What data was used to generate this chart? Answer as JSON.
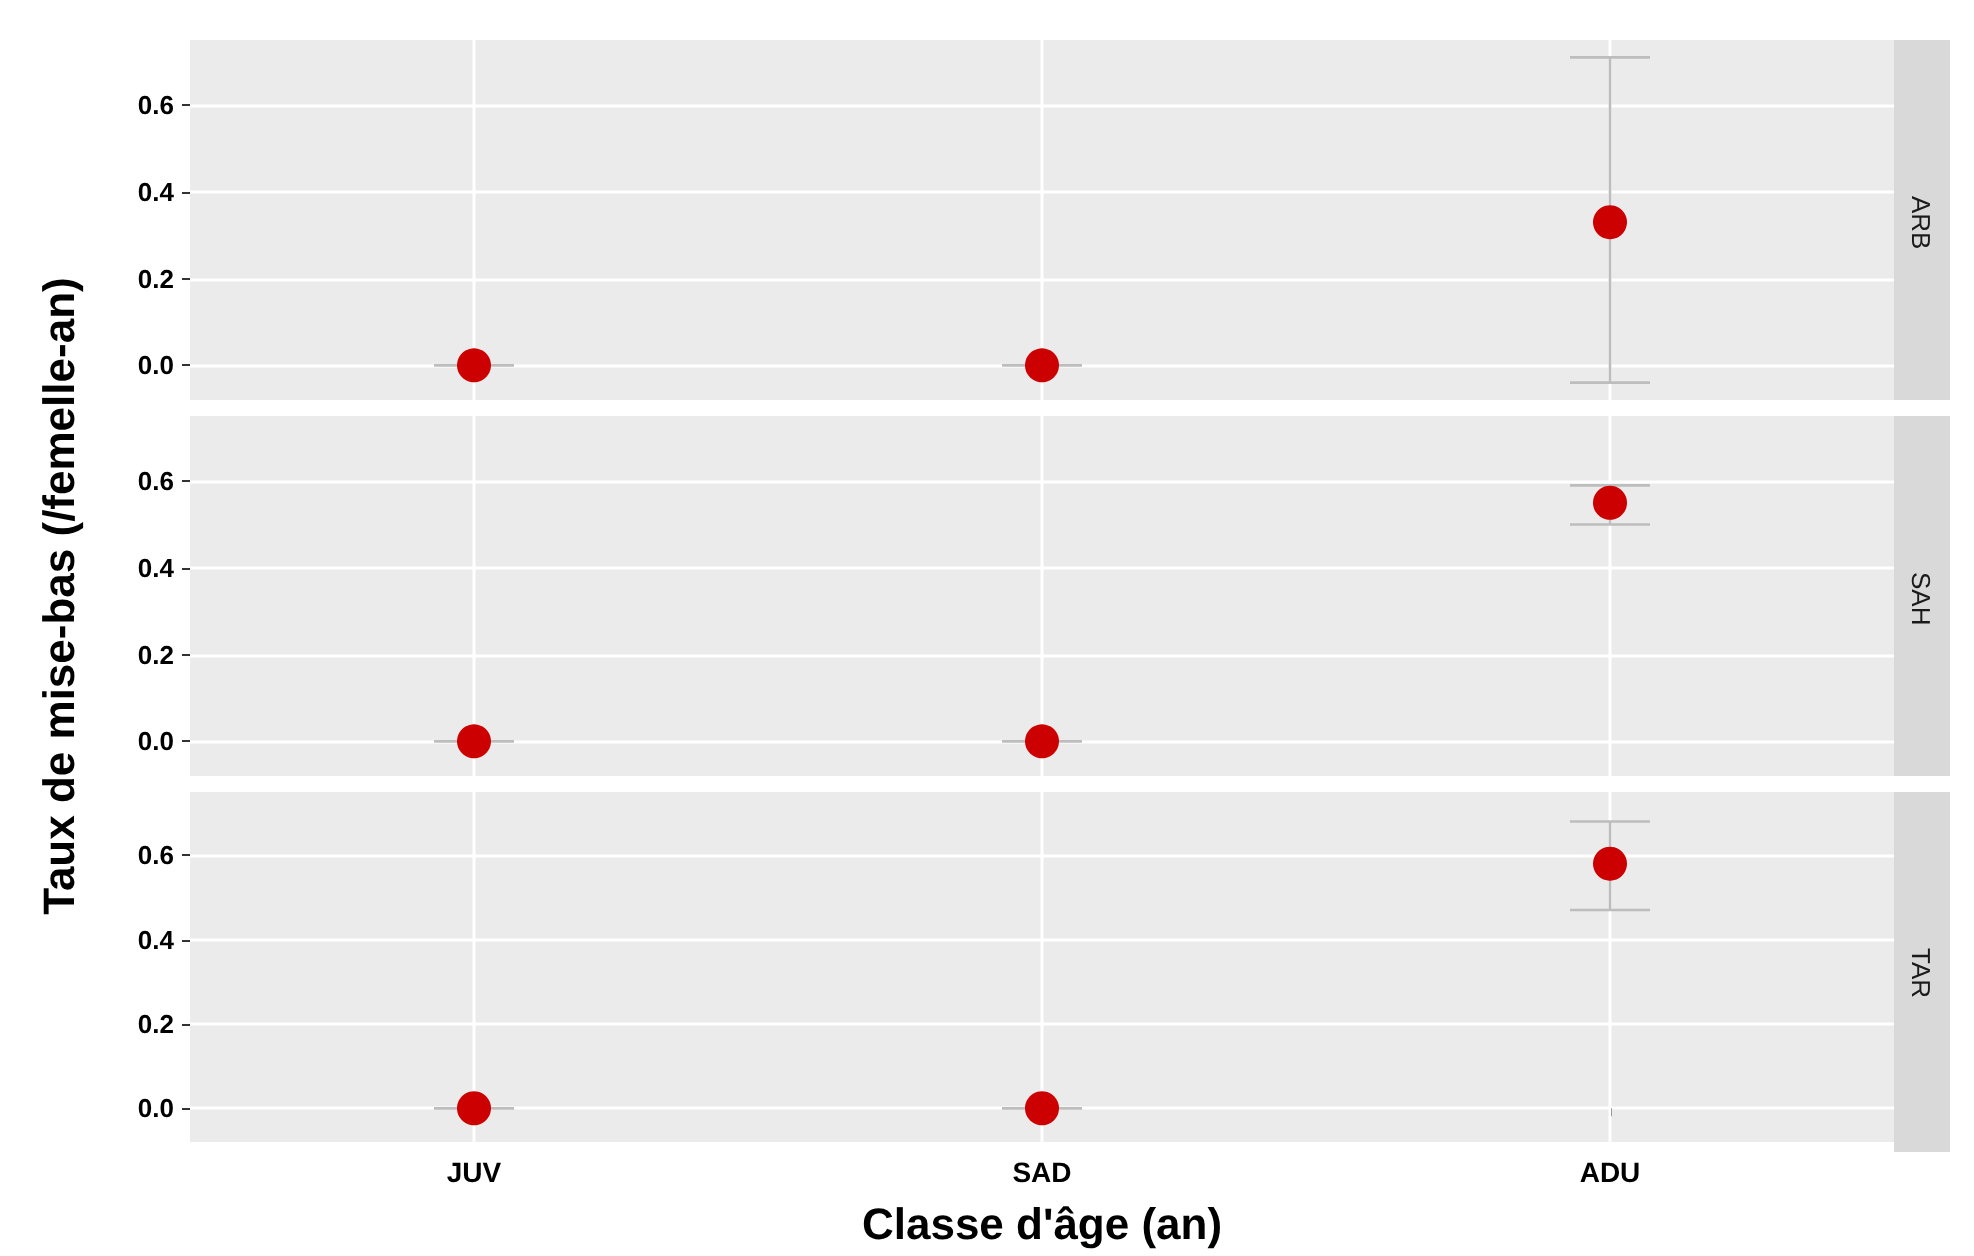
{
  "chart_data": [
    {
      "type": "scatter",
      "title": "ARB",
      "categories": [
        null,
        null,
        null
      ],
      "series": [
        {
          "color": "#cc0000",
          "values": [
            0,
            0,
            0.33
          ],
          "errors": [
            0,
            0,
            [
              -0.04,
              0.71
            ]
          ]
        }
      ],
      "ylim": [
        -0.08,
        0.75
      ],
      "yticks": [
        {
          "value": 0,
          "label": "0.0"
        },
        {
          "value": 0.2,
          "label": "0.2"
        },
        {
          "value": 0.4,
          "label": "0.4"
        },
        {
          "value": 0.6,
          "label": "0.6"
        }
      ],
      "grid": true,
      "marker": "circle",
      "tick_labels": "y"
    },
    {
      "type": "scatter",
      "title": "SAH",
      "ylabel": "Taux de mise-bas (/femelle-an)",
      "categories": [
        null,
        null,
        null
      ],
      "series": [
        {
          "color": "#cc0000",
          "values": [
            0,
            0,
            0.55
          ],
          "errors": [
            0,
            0,
            [
              0.5,
              0.59
            ]
          ]
        }
      ],
      "ylim": [
        -0.08,
        0.75
      ],
      "yticks": [
        {
          "value": 0,
          "label": "0.0"
        },
        {
          "value": 0.2,
          "label": "0.2"
        },
        {
          "value": 0.4,
          "label": "0.4"
        },
        {
          "value": 0.6,
          "label": "0.6"
        }
      ],
      "grid": true,
      "marker": "circle",
      "tick_labels": "y"
    },
    {
      "type": "scatter",
      "title": "TAR",
      "xlabel": "Classe d'âge (an)",
      "categories": [
        "JUV",
        "SAD",
        "ADU"
      ],
      "series": [
        {
          "color": "#cc0000",
          "values": [
            0,
            0,
            0.58
          ],
          "errors": [
            0,
            0,
            [
              0.47,
              0.68
            ]
          ]
        }
      ],
      "ylim": [
        -0.08,
        0.75
      ],
      "yticks": [
        {
          "value": 0,
          "label": "0.0"
        },
        {
          "value": 0.2,
          "label": "0.2"
        },
        {
          "value": 0.4,
          "label": "0.4"
        },
        {
          "value": 0.6,
          "label": "0.6"
        }
      ],
      "grid": true,
      "marker": "circle"
    }
  ]
}
